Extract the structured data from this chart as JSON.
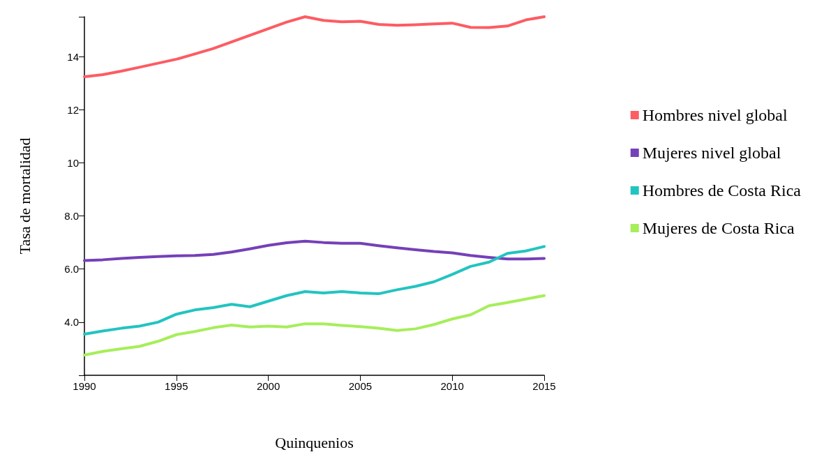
{
  "chart_data": {
    "type": "line",
    "xlabel": "Quinquenios",
    "ylabel": "Tasa de mortalidad",
    "x": [
      1990,
      1991,
      1992,
      1993,
      1994,
      1995,
      1996,
      1997,
      1998,
      1999,
      2000,
      2001,
      2002,
      2003,
      2004,
      2005,
      2006,
      2007,
      2008,
      2009,
      2010,
      2011,
      2012,
      2013,
      2014,
      2015
    ],
    "series": [
      {
        "name": "Hombres nivel global",
        "color": "#fd5c63",
        "values": [
          13.24,
          13.32,
          13.45,
          13.6,
          13.75,
          13.9,
          14.1,
          14.3,
          14.55,
          14.8,
          15.05,
          15.3,
          15.5,
          15.36,
          15.31,
          15.33,
          15.21,
          15.18,
          15.2,
          15.23,
          15.26,
          15.1,
          15.09,
          15.15,
          15.38,
          15.5
        ]
      },
      {
        "name": "Mujeres nivel global",
        "color": "#7540b8",
        "values": [
          6.32,
          6.35,
          6.4,
          6.44,
          6.47,
          6.5,
          6.51,
          6.55,
          6.64,
          6.76,
          6.89,
          6.99,
          7.05,
          7.0,
          6.97,
          6.97,
          6.88,
          6.8,
          6.73,
          6.66,
          6.61,
          6.51,
          6.44,
          6.38,
          6.38,
          6.4
        ]
      },
      {
        "name": "Hombres de Costa Rica",
        "color": "#22c4c0",
        "values": [
          3.55,
          3.67,
          3.77,
          3.85,
          4.0,
          4.3,
          4.46,
          4.55,
          4.67,
          4.58,
          4.79,
          5.0,
          5.15,
          5.1,
          5.15,
          5.1,
          5.07,
          5.22,
          5.35,
          5.52,
          5.8,
          6.1,
          6.26,
          6.59,
          6.68,
          6.85
        ]
      },
      {
        "name": "Mujeres de Costa Rica",
        "color": "#a6ee5a",
        "values": [
          2.76,
          2.9,
          3.0,
          3.09,
          3.28,
          3.53,
          3.65,
          3.79,
          3.89,
          3.82,
          3.85,
          3.82,
          3.94,
          3.94,
          3.88,
          3.83,
          3.77,
          3.69,
          3.75,
          3.91,
          4.12,
          4.28,
          4.62,
          4.74,
          4.87,
          5.0
        ]
      }
    ],
    "xlim": [
      1990,
      2015
    ],
    "xticks": [
      1990,
      1995,
      2000,
      2005,
      2010,
      2015
    ],
    "ylim": [
      2,
      15.5
    ],
    "yticks": [
      {
        "value": 2,
        "label": null
      },
      {
        "value": 4,
        "label": "4.0"
      },
      {
        "value": 6,
        "label": "6.0"
      },
      {
        "value": 8,
        "label": "8.0"
      },
      10,
      12,
      14,
      {
        "value": 15.5,
        "label": null
      }
    ],
    "grid": false,
    "legend": "right",
    "marker": "none",
    "line_style": "solid"
  }
}
